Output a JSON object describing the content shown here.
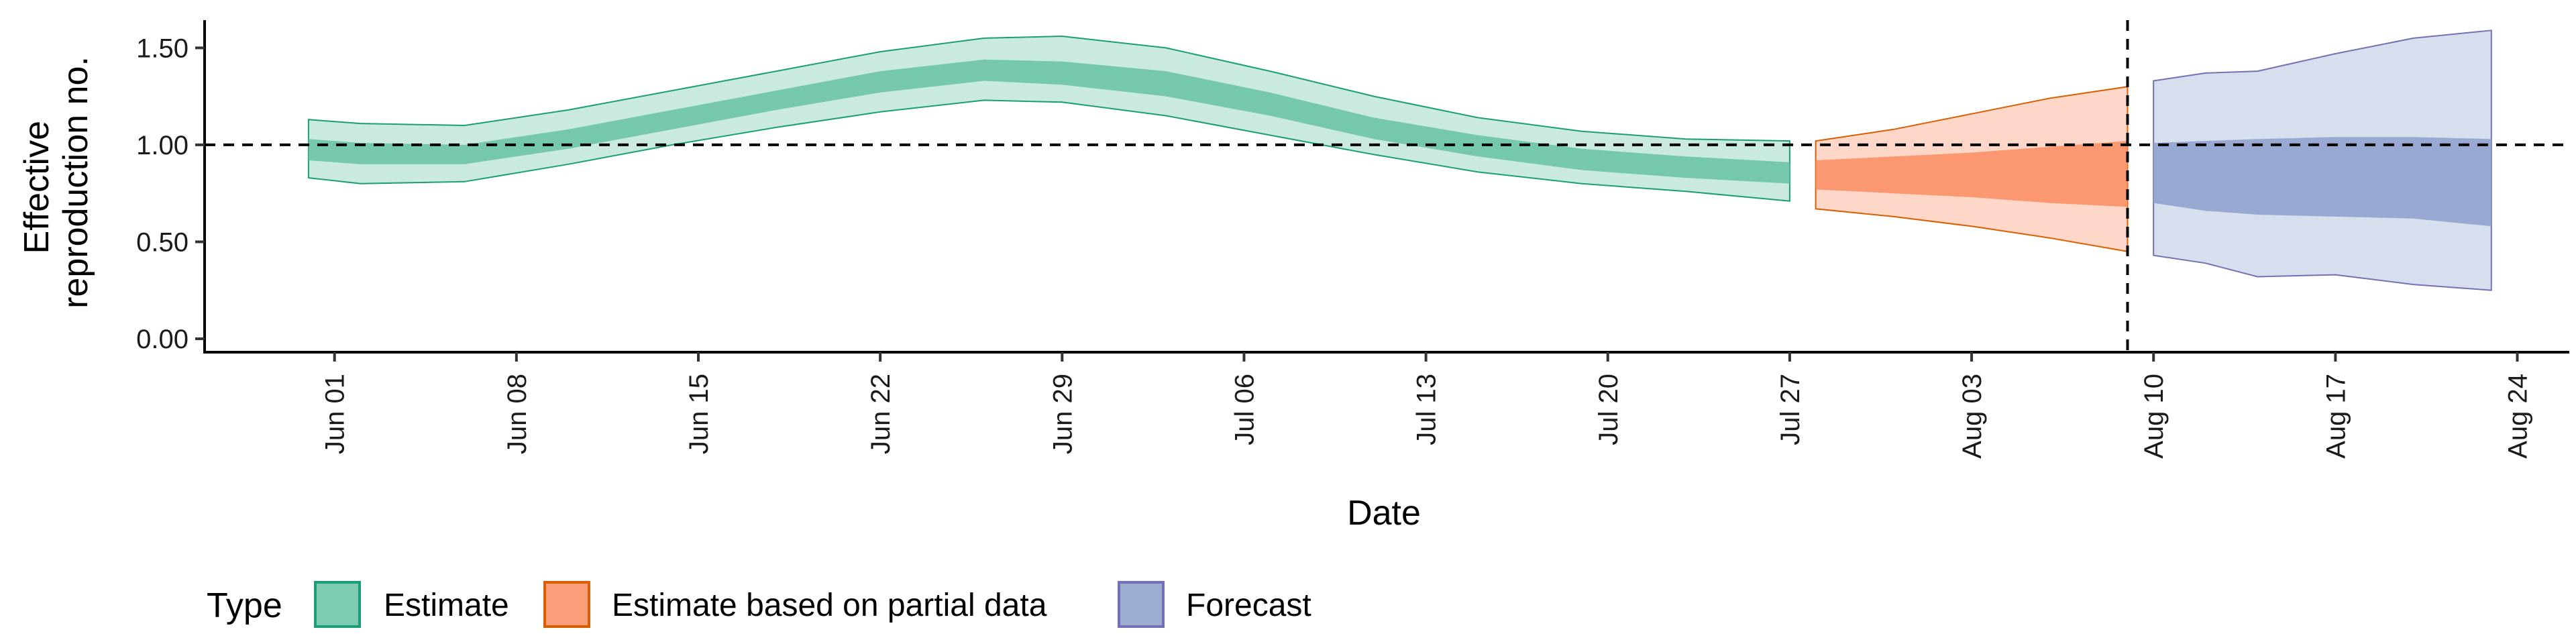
{
  "chart_data": {
    "type": "area",
    "xlabel": "Date",
    "ylabel_lines": [
      "Effective",
      "reproduction no."
    ],
    "ylim": [
      0,
      1.65
    ],
    "y_ticks": [
      0.0,
      0.5,
      1.0,
      1.5
    ],
    "y_tick_labels": [
      "0.00",
      "0.50",
      "1.00",
      "1.50"
    ],
    "xlim": [
      "2020-05-27",
      "2020-08-26"
    ],
    "x_ticks": [
      "2020-06-01",
      "2020-06-08",
      "2020-06-15",
      "2020-06-22",
      "2020-06-29",
      "2020-07-06",
      "2020-07-13",
      "2020-07-20",
      "2020-07-27",
      "2020-08-03",
      "2020-08-10",
      "2020-08-17",
      "2020-08-24"
    ],
    "x_tick_labels": [
      "Jun 01",
      "Jun 08",
      "Jun 15",
      "Jun 22",
      "Jun 29",
      "Jul 06",
      "Jul 13",
      "Jul 20",
      "Jul 27",
      "Aug 03",
      "Aug 10",
      "Aug 17",
      "Aug 24"
    ],
    "reference_hline": 1.0,
    "reference_vline": "2020-08-09",
    "legend": {
      "title": "Type",
      "position": "bottom-left"
    },
    "grid": false,
    "series": [
      {
        "name": "Estimate",
        "fill_color": "#66c2a5",
        "line_color": "#1b9e77",
        "points": [
          {
            "x": "2020-05-31",
            "lower90": 0.83,
            "upper90": 1.13,
            "lower50": 0.92,
            "upper50": 1.03
          },
          {
            "x": "2020-06-02",
            "lower90": 0.8,
            "upper90": 1.11,
            "lower50": 0.9,
            "upper50": 1.01
          },
          {
            "x": "2020-06-06",
            "lower90": 0.81,
            "upper90": 1.1,
            "lower50": 0.9,
            "upper50": 1.0
          },
          {
            "x": "2020-06-10",
            "lower90": 0.9,
            "upper90": 1.18,
            "lower50": 0.98,
            "upper50": 1.08
          },
          {
            "x": "2020-06-14",
            "lower90": 1.0,
            "upper90": 1.28,
            "lower50": 1.08,
            "upper50": 1.18
          },
          {
            "x": "2020-06-18",
            "lower90": 1.09,
            "upper90": 1.38,
            "lower50": 1.18,
            "upper50": 1.28
          },
          {
            "x": "2020-06-22",
            "lower90": 1.17,
            "upper90": 1.48,
            "lower50": 1.27,
            "upper50": 1.38
          },
          {
            "x": "2020-06-26",
            "lower90": 1.23,
            "upper90": 1.55,
            "lower50": 1.33,
            "upper50": 1.44
          },
          {
            "x": "2020-06-29",
            "lower90": 1.22,
            "upper90": 1.56,
            "lower50": 1.31,
            "upper50": 1.43
          },
          {
            "x": "2020-07-03",
            "lower90": 1.15,
            "upper90": 1.5,
            "lower50": 1.25,
            "upper50": 1.38
          },
          {
            "x": "2020-07-07",
            "lower90": 1.05,
            "upper90": 1.38,
            "lower50": 1.15,
            "upper50": 1.27
          },
          {
            "x": "2020-07-11",
            "lower90": 0.95,
            "upper90": 1.25,
            "lower50": 1.03,
            "upper50": 1.14
          },
          {
            "x": "2020-07-15",
            "lower90": 0.86,
            "upper90": 1.14,
            "lower50": 0.94,
            "upper50": 1.05
          },
          {
            "x": "2020-07-19",
            "lower90": 0.8,
            "upper90": 1.07,
            "lower50": 0.87,
            "upper50": 0.98
          },
          {
            "x": "2020-07-23",
            "lower90": 0.76,
            "upper90": 1.03,
            "lower50": 0.83,
            "upper50": 0.94
          },
          {
            "x": "2020-07-27",
            "lower90": 0.71,
            "upper90": 1.02,
            "lower50": 0.8,
            "upper50": 0.91
          }
        ]
      },
      {
        "name": "Estimate based on partial data",
        "fill_color": "#fc8d62",
        "line_color": "#d95f02",
        "points": [
          {
            "x": "2020-07-28",
            "lower90": 0.67,
            "upper90": 1.02,
            "lower50": 0.77,
            "upper50": 0.92
          },
          {
            "x": "2020-07-31",
            "lower90": 0.63,
            "upper90": 1.08,
            "lower50": 0.75,
            "upper50": 0.94
          },
          {
            "x": "2020-08-03",
            "lower90": 0.58,
            "upper90": 1.16,
            "lower50": 0.73,
            "upper50": 0.96
          },
          {
            "x": "2020-08-06",
            "lower90": 0.52,
            "upper90": 1.24,
            "lower50": 0.7,
            "upper50": 0.99
          },
          {
            "x": "2020-08-09",
            "lower90": 0.45,
            "upper90": 1.3,
            "lower50": 0.68,
            "upper50": 1.02
          }
        ]
      },
      {
        "name": "Forecast",
        "fill_color": "#8da0cb",
        "line_color": "#7570b3",
        "points": [
          {
            "x": "2020-08-10",
            "lower90": 0.43,
            "upper90": 1.33,
            "lower50": 0.7,
            "upper50": 1.01
          },
          {
            "x": "2020-08-12",
            "lower90": 0.39,
            "upper90": 1.37,
            "lower50": 0.66,
            "upper50": 1.02
          },
          {
            "x": "2020-08-14",
            "lower90": 0.32,
            "upper90": 1.38,
            "lower50": 0.64,
            "upper50": 1.03
          },
          {
            "x": "2020-08-17",
            "lower90": 0.33,
            "upper90": 1.47,
            "lower50": 0.63,
            "upper50": 1.04
          },
          {
            "x": "2020-08-20",
            "lower90": 0.28,
            "upper90": 1.55,
            "lower50": 0.62,
            "upper50": 1.04
          },
          {
            "x": "2020-08-23",
            "lower90": 0.25,
            "upper90": 1.59,
            "lower50": 0.58,
            "upper50": 1.03
          }
        ]
      }
    ]
  }
}
